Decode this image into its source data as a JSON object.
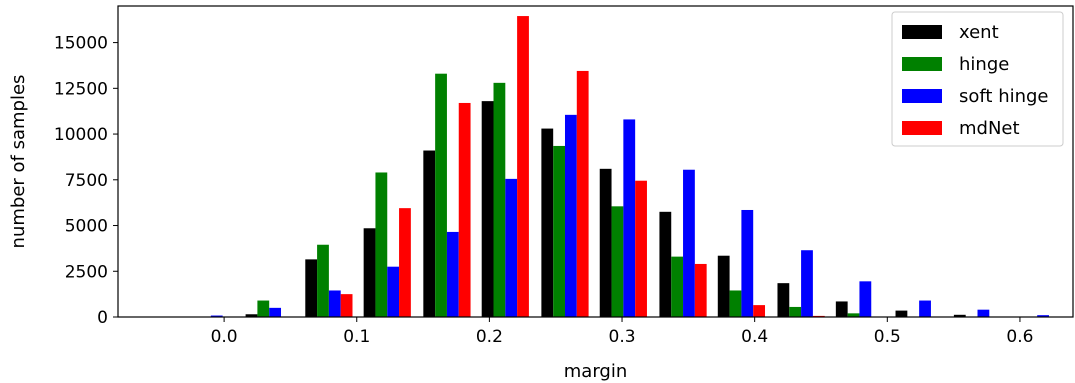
{
  "chart_data": {
    "type": "bar",
    "title": "",
    "xlabel": "margin",
    "ylabel": "number of samples",
    "xlim": [
      -0.08,
      0.64
    ],
    "ylim": [
      0,
      17000
    ],
    "xticks": [
      {
        "value": 0.0,
        "label": "0.0"
      },
      {
        "value": 0.1,
        "label": "0.1"
      },
      {
        "value": 0.2,
        "label": "0.2"
      },
      {
        "value": 0.3,
        "label": "0.3"
      },
      {
        "value": 0.4,
        "label": "0.4"
      },
      {
        "value": 0.5,
        "label": "0.5"
      },
      {
        "value": 0.6,
        "label": "0.6"
      }
    ],
    "yticks": [
      {
        "value": 0,
        "label": "0"
      },
      {
        "value": 2500,
        "label": "2500"
      },
      {
        "value": 5000,
        "label": "5000"
      },
      {
        "value": 7500,
        "label": "7500"
      },
      {
        "value": 10000,
        "label": "10000"
      },
      {
        "value": 12500,
        "label": "12500"
      },
      {
        "value": 15000,
        "label": "15000"
      }
    ],
    "x": [
      -0.01,
      0.034,
      0.079,
      0.123,
      0.168,
      0.212,
      0.257,
      0.301,
      0.346,
      0.39,
      0.435,
      0.479,
      0.524,
      0.568,
      0.613
    ],
    "bar_width": 0.0089,
    "grid": false,
    "legend_position": "top-right",
    "series": [
      {
        "name": "xent",
        "color": "#000000",
        "values": [
          0,
          150,
          3150,
          4850,
          9100,
          11800,
          10300,
          8100,
          5750,
          3350,
          1850,
          850,
          350,
          120,
          0
        ]
      },
      {
        "name": "hinge",
        "color": "#008000",
        "values": [
          0,
          900,
          3950,
          7900,
          13300,
          12800,
          9350,
          6050,
          3300,
          1450,
          550,
          200,
          0,
          0,
          0
        ]
      },
      {
        "name": "soft hinge",
        "color": "#0000ff",
        "values": [
          80,
          500,
          1450,
          2750,
          4650,
          7550,
          11050,
          10800,
          8050,
          5850,
          3650,
          1950,
          900,
          400,
          100
        ]
      },
      {
        "name": "mdNet",
        "color": "#ff0000",
        "values": [
          0,
          0,
          1250,
          5950,
          11700,
          16450,
          13450,
          7450,
          2900,
          650,
          60,
          0,
          0,
          0,
          0
        ]
      }
    ]
  }
}
